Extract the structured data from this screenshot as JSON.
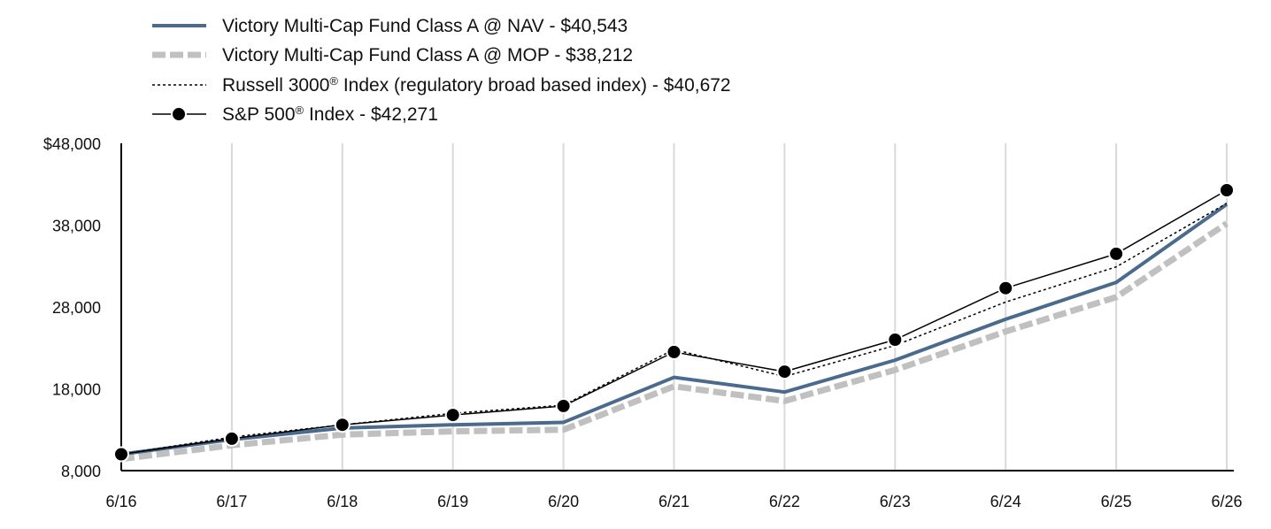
{
  "chart_data": {
    "type": "line",
    "x": [
      "6/16",
      "6/17",
      "6/18",
      "6/19",
      "6/20",
      "6/21",
      "6/22",
      "6/23",
      "6/24",
      "6/25",
      "6/26"
    ],
    "ylim": [
      8000,
      48000
    ],
    "yticks": [
      8000,
      18000,
      28000,
      38000,
      48000
    ],
    "ytick_labels": [
      "8,000",
      "18,000",
      "28,000",
      "38,000",
      "$48,000"
    ],
    "grid": "vertical",
    "legend_position": "top-left",
    "series": [
      {
        "name": "Victory Multi-Cap Fund Class A @ NAV - $40,543",
        "label_parts": [
          "Victory Multi-Cap Fund Class A @ NAV - $40,543"
        ],
        "color": "#4a6a8e",
        "style": "solid-thick",
        "values": [
          10000,
          11800,
          13200,
          13600,
          13900,
          19400,
          17600,
          21500,
          26500,
          31000,
          40543
        ]
      },
      {
        "name": "Victory Multi-Cap Fund Class A @ MOP - $38,212",
        "label_parts": [
          "Victory Multi-Cap Fund Class A @ MOP - $38,212"
        ],
        "color": "#c0c0c0",
        "style": "dashed-thick",
        "values": [
          9425,
          11100,
          12400,
          12800,
          13000,
          18300,
          16500,
          20300,
          25000,
          29200,
          38212
        ]
      },
      {
        "name": "Russell 3000® Index (regulatory broad based index) - $40,672",
        "label_parts": [
          "Russell 3000",
          "®",
          " Index (regulatory broad based index) - $40,672"
        ],
        "color": "#000000",
        "style": "dotted",
        "values": [
          10000,
          12100,
          13600,
          15000,
          16000,
          22800,
          19500,
          23300,
          28600,
          32900,
          40672
        ]
      },
      {
        "name": "S&P 500® Index - $42,271",
        "label_parts": [
          "S&P 500",
          "®",
          " Index - $42,271"
        ],
        "color": "#000000",
        "style": "solid-marker",
        "values": [
          10000,
          11900,
          13600,
          14800,
          15900,
          22500,
          20100,
          24000,
          30300,
          34500,
          42271
        ]
      }
    ]
  }
}
